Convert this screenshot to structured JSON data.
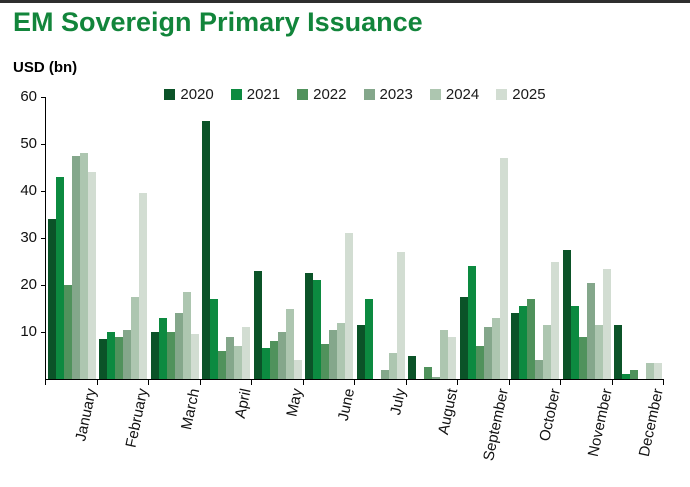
{
  "window": {
    "top_band_color": "#2f2f2f"
  },
  "header": {
    "title": "EM Sovereign Primary Issuance",
    "title_color": "#12853b"
  },
  "chart_data": {
    "type": "bar",
    "title": "EM Sovereign Primary Issuance",
    "ylabel": "USD (bn)",
    "xlabel": "",
    "ylim": [
      0,
      60
    ],
    "yticks": [
      10,
      20,
      30,
      40,
      50,
      60
    ],
    "grid": false,
    "legend_position": "top-center",
    "categories": [
      "January",
      "February",
      "March",
      "April",
      "May",
      "June",
      "July",
      "August",
      "September",
      "October",
      "November",
      "December"
    ],
    "series": [
      {
        "name": "2020",
        "color": "#0b5328",
        "values": [
          34,
          8.5,
          10,
          55,
          23,
          22.5,
          11.5,
          5,
          17.5,
          14,
          27.5,
          11.5
        ]
      },
      {
        "name": "2021",
        "color": "#0c8a40",
        "values": [
          43,
          10,
          13,
          17,
          6.5,
          21,
          17,
          0,
          24,
          15.5,
          15.5,
          1
        ]
      },
      {
        "name": "2022",
        "color": "#50925c",
        "values": [
          20,
          9,
          10,
          6,
          8,
          7.5,
          0,
          2.5,
          7,
          17,
          9,
          2
        ]
      },
      {
        "name": "2023",
        "color": "#84a78b",
        "values": [
          47.5,
          10.5,
          14,
          9,
          10,
          10.5,
          2,
          0.5,
          11,
          4,
          20.5,
          0
        ]
      },
      {
        "name": "2024",
        "color": "#adc6b0",
        "values": [
          48,
          17.5,
          18.5,
          7,
          15,
          12,
          5.5,
          10.5,
          13,
          11.5,
          11.5,
          3.5
        ]
      },
      {
        "name": "2025",
        "color": "#d2ddd2",
        "values": [
          44,
          39.5,
          9.5,
          11,
          4,
          31,
          27,
          9,
          47,
          25,
          23.5,
          3.5
        ]
      }
    ]
  }
}
